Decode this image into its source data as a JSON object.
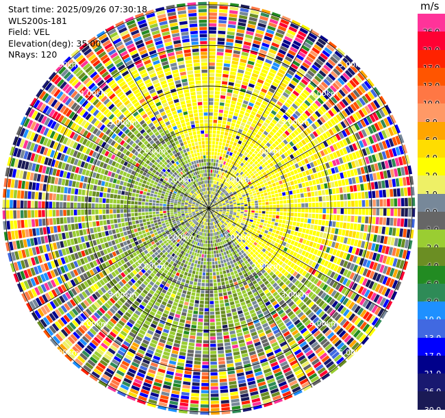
{
  "header": {
    "start_time": "Start time: 2025/09/26 07:30:18",
    "instrument": "WLS200s-181",
    "field": "Field: VEL",
    "elevation": "Elevation(deg): 35.00",
    "nrays": "NRays: 120"
  },
  "colorbar": {
    "unit": "m/s",
    "levels": [
      {
        "label": "26.0",
        "color": "#ff3399"
      },
      {
        "label": "21.0",
        "color": "#ff0033"
      },
      {
        "label": "17.0",
        "color": "#ff2200"
      },
      {
        "label": "13.0",
        "color": "#ff5500"
      },
      {
        "label": "10.0",
        "color": "#ff7744"
      },
      {
        "label": "8.0",
        "color": "#ff9966"
      },
      {
        "label": "6.0",
        "color": "#ffa500"
      },
      {
        "label": "4.0",
        "color": "#ffdd00"
      },
      {
        "label": "2.0",
        "color": "#ffff00"
      },
      {
        "label": "1.0",
        "color": "#eef066"
      },
      {
        "label": "0.0",
        "color": "#778899"
      },
      {
        "label": "-1.0",
        "color": "#666666"
      },
      {
        "label": "-2.0",
        "color": "#9acd32"
      },
      {
        "label": "-4.0",
        "color": "#6b8e23"
      },
      {
        "label": "-6.0",
        "color": "#228b22"
      },
      {
        "label": "-8.0",
        "color": "#2e8b57"
      },
      {
        "label": "-10.0",
        "color": "#1e90ff"
      },
      {
        "label": "-13.0",
        "color": "#4169e1"
      },
      {
        "label": "-17.0",
        "color": "#0000ff"
      },
      {
        "label": "-21.0",
        "color": "#00008b"
      },
      {
        "label": "-26.0",
        "color": "#191970"
      },
      {
        "label": "-30.0",
        "color": "#1a1a55"
      }
    ]
  },
  "chart_data": {
    "type": "ppi",
    "field": "VEL",
    "elevation_deg": 35.0,
    "nrays": 120,
    "range_rings_km": [
      1.0,
      2.0,
      3.0,
      4.0,
      5.0
    ],
    "ring_labels": [
      "1.00km",
      "2.00km",
      "3.00km",
      "4.00km",
      "5.00km"
    ],
    "max_range_km": 5.08,
    "spoke_angles_deg": [
      0,
      30,
      60,
      90,
      120,
      150,
      180,
      210,
      240,
      270,
      300,
      330
    ],
    "gates_per_ray": 58
  }
}
